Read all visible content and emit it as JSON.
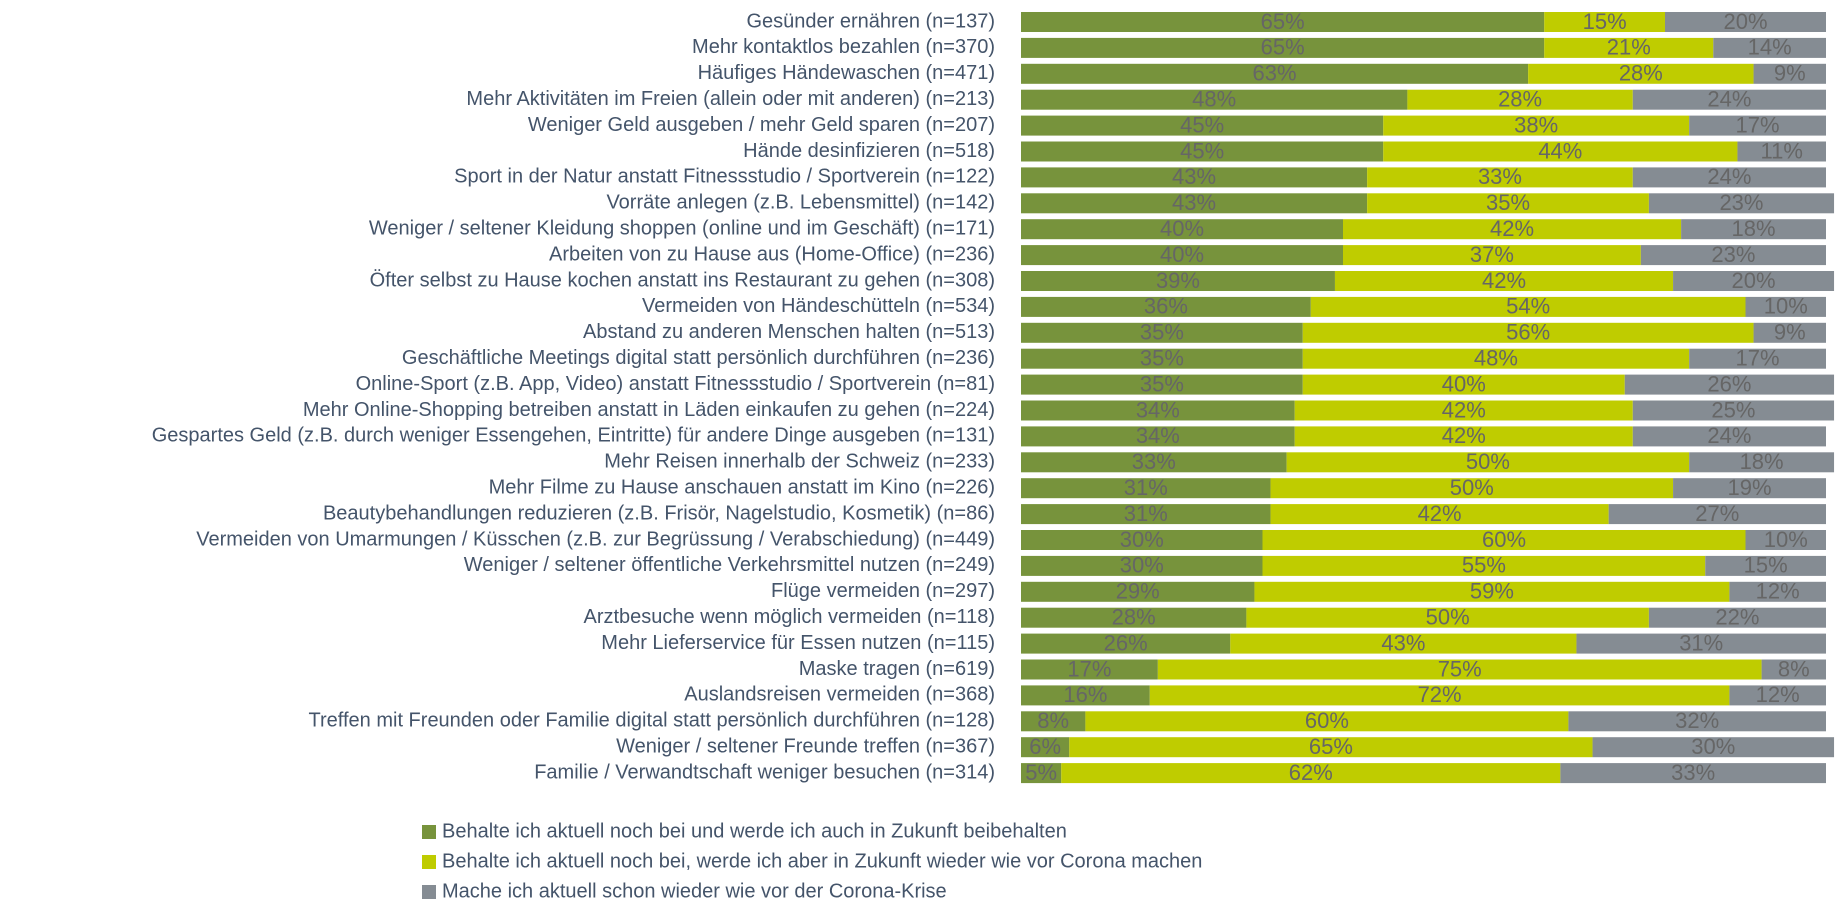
{
  "chart_data": {
    "type": "bar",
    "orientation": "horizontal",
    "stacked": true,
    "xlim": [
      0,
      100
    ],
    "categories": [
      "Gesünder ernähren (n=137)",
      "Mehr kontaktlos bezahlen (n=370)",
      "Häufiges Händewaschen (n=471)",
      "Mehr Aktivitäten im Freien (allein oder mit anderen) (n=213)",
      "Weniger Geld ausgeben / mehr Geld sparen (n=207)",
      "Hände desinfizieren (n=518)",
      "Sport in der Natur anstatt Fitnessstudio / Sportverein (n=122)",
      "Vorräte anlegen (z.B. Lebensmittel) (n=142)",
      "Weniger / seltener Kleidung shoppen (online und im Geschäft) (n=171)",
      "Arbeiten von zu Hause aus (Home-Office) (n=236)",
      "Öfter selbst zu Hause kochen anstatt ins Restaurant zu gehen (n=308)",
      "Vermeiden von Händeschütteln (n=534)",
      "Abstand zu anderen Menschen halten (n=513)",
      "Geschäftliche Meetings digital statt persönlich durchführen (n=236)",
      "Online-Sport (z.B. App, Video) anstatt Fitnessstudio / Sportverein (n=81)",
      "Mehr Online-Shopping betreiben anstatt in Läden einkaufen zu gehen (n=224)",
      "Gespartes Geld (z.B. durch weniger Essengehen, Eintritte) für andere Dinge ausgeben (n=131)",
      "Mehr Reisen innerhalb der Schweiz (n=233)",
      "Mehr Filme zu Hause anschauen anstatt im Kino (n=226)",
      "Beautybehandlungen reduzieren (z.B. Frisör, Nagelstudio, Kosmetik) (n=86)",
      "Vermeiden von Umarmungen / Küsschen (z.B. zur Begrüssung / Verabschiedung) (n=449)",
      "Weniger / seltener öffentliche Verkehrsmittel nutzen (n=249)",
      "Flüge vermeiden (n=297)",
      "Arztbesuche wenn möglich vermeiden (n=118)",
      "Mehr Lieferservice für Essen nutzen (n=115)",
      "Maske tragen (n=619)",
      "Auslandsreisen vermeiden (n=368)",
      "Treffen mit Freunden oder Familie digital statt persönlich durchführen (n=128)",
      "Weniger / seltener Freunde treffen (n=367)",
      "Familie / Verwandtschaft weniger besuchen (n=314)"
    ],
    "series": [
      {
        "name": "Behalte ich aktuell noch bei und werde ich auch in Zukunft beibehalten",
        "color": "#77933c",
        "values": [
          65,
          65,
          63,
          48,
          45,
          45,
          43,
          43,
          40,
          40,
          39,
          36,
          35,
          35,
          35,
          34,
          34,
          33,
          31,
          31,
          30,
          30,
          29,
          28,
          26,
          17,
          16,
          8,
          6,
          5
        ],
        "value_labels": [
          "65%",
          "65%",
          "63%",
          "48%",
          "45%",
          "45%",
          "43%",
          "43%",
          "40%",
          "40%",
          "39%",
          "36%",
          "35%",
          "35%",
          "35%",
          "34%",
          "34%",
          "33%",
          "31%",
          "31%",
          "30%",
          "30%",
          "29%",
          "28%",
          "26%",
          "17%",
          "16%",
          "8%",
          "6%",
          "5%"
        ]
      },
      {
        "name": "Behalte ich aktuell noch bei, werde ich aber in Zukunft wieder wie vor Corona machen",
        "color": "#bfcc00",
        "values": [
          15,
          21,
          28,
          28,
          38,
          44,
          33,
          35,
          42,
          37,
          42,
          54,
          56,
          48,
          40,
          42,
          42,
          50,
          50,
          42,
          60,
          55,
          59,
          50,
          43,
          75,
          72,
          60,
          65,
          62
        ],
        "value_labels": [
          "15%",
          "21%",
          "28%",
          "28%",
          "38%",
          "44%",
          "33%",
          "35%",
          "42%",
          "37%",
          "42%",
          "54%",
          "56%",
          "48%",
          "40%",
          "42%",
          "42%",
          "50%",
          "50%",
          "42%",
          "60%",
          "55%",
          "59%",
          "50%",
          "43%",
          "75%",
          "72%",
          "60%",
          "65%",
          "62%"
        ]
      },
      {
        "name": "Mache ich aktuell schon wieder wie vor der Corona-Krise",
        "color": "#858c93",
        "values": [
          20,
          14,
          9,
          24,
          17,
          11,
          24,
          23,
          18,
          23,
          20,
          10,
          9,
          17,
          26,
          25,
          24,
          18,
          19,
          27,
          10,
          15,
          12,
          22,
          31,
          8,
          12,
          32,
          30,
          33
        ],
        "value_labels": [
          "20%",
          "14%",
          "9%",
          "24%",
          "17%",
          "11%",
          "24%",
          "23%",
          "18%",
          "23%",
          "20%",
          "10%",
          "9%",
          "17%",
          "26%",
          "25%",
          "24%",
          "18%",
          "19%",
          "27%",
          "10%",
          "15%",
          "12%",
          "22%",
          "31%",
          "8%",
          "12%",
          "32%",
          "30%",
          "33%"
        ]
      }
    ]
  }
}
